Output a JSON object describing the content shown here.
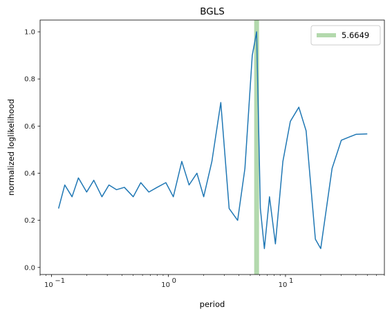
{
  "chart_data": {
    "type": "line",
    "title": "BGLS",
    "xlabel": "period",
    "ylabel": "normalized loglikelihood",
    "xscale": "log",
    "xlim": [
      0.08,
      70
    ],
    "ylim": [
      -0.03,
      1.05
    ],
    "x_ticks": [
      {
        "value": 0.1,
        "base": "10",
        "exp": "−1"
      },
      {
        "value": 1,
        "base": "10",
        "exp": "0"
      },
      {
        "value": 10,
        "base": "10",
        "exp": "1"
      }
    ],
    "y_ticks": [
      {
        "value": 0.0,
        "label": "0.0"
      },
      {
        "value": 0.2,
        "label": "0.2"
      },
      {
        "value": 0.4,
        "label": "0.4"
      },
      {
        "value": 0.6,
        "label": "0.6"
      },
      {
        "value": 0.8,
        "label": "0.8"
      },
      {
        "value": 1.0,
        "label": "1.0"
      }
    ],
    "grid": false,
    "legend": {
      "placement": "top-right"
    },
    "highlight": {
      "name": "5.6649",
      "x": 5.6649,
      "color": "#b3d9ad"
    },
    "series": [
      {
        "color": "#1f77b4",
        "x": [
          0.115,
          0.13,
          0.15,
          0.17,
          0.2,
          0.23,
          0.27,
          0.31,
          0.36,
          0.42,
          0.5,
          0.58,
          0.68,
          0.8,
          0.95,
          1.1,
          1.3,
          1.5,
          1.75,
          2.0,
          2.35,
          2.8,
          3.3,
          3.9,
          4.5,
          5.2,
          5.6649,
          6.1,
          6.6,
          7.3,
          8.2,
          9.5,
          11,
          13,
          15,
          18,
          20,
          25,
          30,
          40,
          50
        ],
        "y": [
          0.25,
          0.35,
          0.3,
          0.38,
          0.32,
          0.37,
          0.3,
          0.35,
          0.33,
          0.34,
          0.3,
          0.36,
          0.32,
          0.34,
          0.36,
          0.3,
          0.45,
          0.35,
          0.4,
          0.3,
          0.45,
          0.7,
          0.25,
          0.2,
          0.42,
          0.9,
          1.0,
          0.25,
          0.08,
          0.3,
          0.1,
          0.45,
          0.62,
          0.68,
          0.58,
          0.12,
          0.08,
          0.42,
          0.54,
          0.565,
          0.567
        ]
      }
    ]
  }
}
